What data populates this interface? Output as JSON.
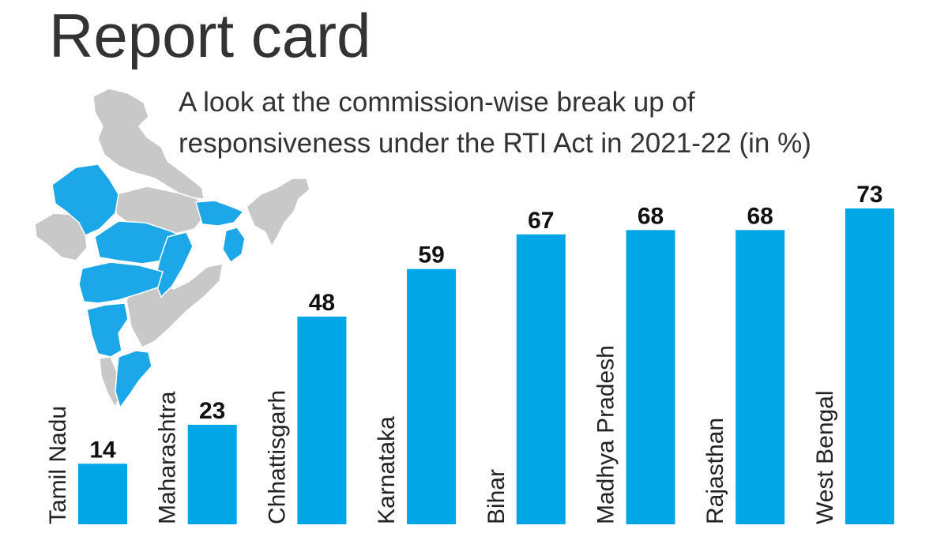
{
  "chart_data": {
    "type": "bar",
    "title": "Report card",
    "subtitle_lines": [
      "A look at the commission-wise break up of",
      "responsiveness under the RTI Act in 2021-22 (in %)"
    ],
    "categories": [
      "Tamil Nadu",
      "Maharashtra",
      "Chhattisgarh",
      "Karnataka",
      "Bihar",
      "Madhya Pradesh",
      "Rajasthan",
      "West Bengal"
    ],
    "values": [
      14,
      23,
      48,
      59,
      67,
      68,
      68,
      73
    ],
    "bar_color": "#00a6e6",
    "map": {
      "highlight_color": "#1ca8e8",
      "base_color": "#c8c8c8"
    }
  }
}
